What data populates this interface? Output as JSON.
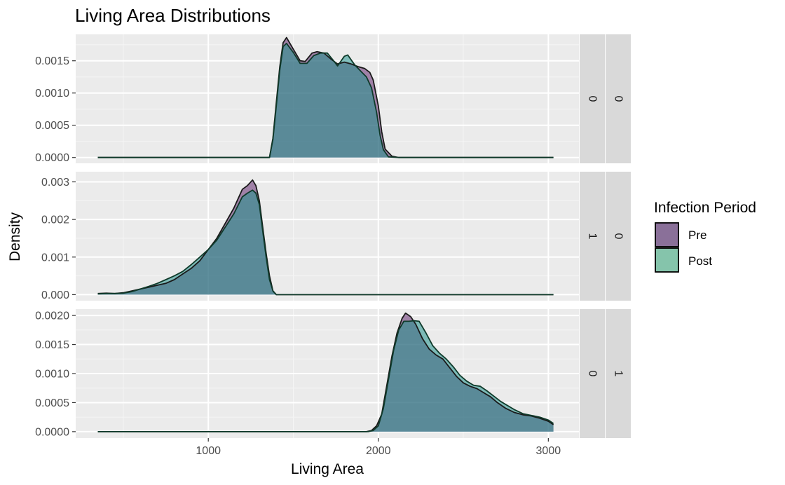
{
  "chart_data": {
    "type": "area",
    "title": "Living Area Distributions",
    "xlabel": "Living Area",
    "ylabel": "Density",
    "xlim": [
      220,
      3180
    ],
    "x_ticks": [
      1000,
      2000,
      3000
    ],
    "grid": true,
    "legend": {
      "title": "Infection Period",
      "placement": "right",
      "entries": [
        {
          "label": "Pre",
          "color": "#8a7099"
        },
        {
          "label": "Post",
          "color": "#85c4ab"
        }
      ]
    },
    "facets": [
      {
        "strip_labels": [
          "0",
          "0"
        ],
        "ylim": [
          -9e-05,
          0.00191
        ],
        "y_ticks": [
          0.0,
          0.0005,
          0.001,
          0.0015
        ],
        "y_tick_labels": [
          "0.0000",
          "0.0005",
          "0.0010",
          "0.0015"
        ],
        "series": [
          {
            "name": "Pre",
            "x": [
              350,
              1360,
              1380,
              1400,
              1420,
              1440,
              1460,
              1500,
              1540,
              1570,
              1610,
              1640,
              1680,
              1720,
              1760,
              1800,
              1840,
              1880,
              1920,
              1950,
              1970,
              2000,
              2020,
              2040,
              2080,
              2120,
              3030
            ],
            "y": [
              0,
              0,
              0.0003,
              0.00085,
              0.0014,
              0.00178,
              0.00186,
              0.00168,
              0.0015,
              0.00149,
              0.00162,
              0.00164,
              0.00162,
              0.00153,
              0.00145,
              0.00148,
              0.00145,
              0.00141,
              0.00138,
              0.00132,
              0.0012,
              0.0008,
              0.0004,
              0.00013,
              2e-05,
              0,
              0
            ]
          },
          {
            "name": "Post",
            "x": [
              350,
              1360,
              1380,
              1400,
              1420,
              1440,
              1460,
              1500,
              1540,
              1580,
              1620,
              1660,
              1700,
              1740,
              1760,
              1800,
              1820,
              1860,
              1900,
              1930,
              1960,
              1990,
              2010,
              2030,
              2060,
              2120,
              3030
            ],
            "y": [
              0,
              0,
              0.00028,
              0.0008,
              0.00135,
              0.00172,
              0.00177,
              0.00163,
              0.00146,
              0.00146,
              0.00158,
              0.00162,
              0.00162,
              0.00149,
              0.00142,
              0.00157,
              0.00159,
              0.00144,
              0.00133,
              0.00125,
              0.00108,
              0.0007,
              0.00035,
              0.00012,
              1e-05,
              0,
              0
            ]
          }
        ]
      },
      {
        "strip_labels": [
          "1",
          "0"
        ],
        "ylim": [
          -0.00016,
          0.00327
        ],
        "y_ticks": [
          0.0,
          0.001,
          0.002,
          0.003
        ],
        "y_tick_labels": [
          "0.000",
          "0.001",
          "0.002",
          "0.003"
        ],
        "series": [
          {
            "name": "Pre",
            "x": [
              350,
              400,
              450,
              500,
              550,
              600,
              650,
              700,
              750,
              800,
              850,
              900,
              950,
              1000,
              1050,
              1100,
              1150,
              1200,
              1230,
              1260,
              1280,
              1300,
              1320,
              1340,
              1360,
              1380,
              1400,
              3030
            ],
            "y": [
              3e-05,
              4e-05,
              3e-05,
              5e-05,
              0.0001,
              0.00015,
              0.0002,
              0.00025,
              0.0003,
              0.0004,
              0.00055,
              0.0007,
              0.0009,
              0.0012,
              0.0015,
              0.0019,
              0.0023,
              0.0028,
              0.0029,
              0.00305,
              0.0029,
              0.0025,
              0.0018,
              0.0011,
              0.0005,
              0.0001,
              0,
              0
            ]
          },
          {
            "name": "Post",
            "x": [
              350,
              400,
              450,
              500,
              550,
              600,
              650,
              700,
              750,
              800,
              850,
              900,
              950,
              1000,
              1050,
              1100,
              1150,
              1200,
              1230,
              1260,
              1280,
              1300,
              1320,
              1340,
              1360,
              1380,
              1400,
              3030
            ],
            "y": [
              2e-05,
              3e-05,
              3e-05,
              4e-05,
              8e-05,
              0.00015,
              0.00022,
              0.0003,
              0.0004,
              0.0005,
              0.00062,
              0.0008,
              0.001,
              0.0012,
              0.00145,
              0.0018,
              0.00215,
              0.0026,
              0.0027,
              0.00278,
              0.0027,
              0.0024,
              0.0017,
              0.001,
              0.0004,
              0.0001,
              0,
              0
            ]
          }
        ]
      },
      {
        "strip_labels": [
          "0",
          "1"
        ],
        "ylim": [
          -0.00011,
          0.00211
        ],
        "y_ticks": [
          0.0,
          0.0005,
          0.001,
          0.0015,
          0.002
        ],
        "y_tick_labels": [
          "0.0000",
          "0.0005",
          "0.0010",
          "0.0015",
          "0.0020"
        ],
        "series": [
          {
            "name": "Pre",
            "x": [
              350,
              1930,
              1960,
              1990,
              2020,
              2050,
              2080,
              2110,
              2140,
              2160,
              2190,
              2220,
              2260,
              2300,
              2340,
              2380,
              2420,
              2460,
              2500,
              2540,
              2580,
              2620,
              2660,
              2700,
              2750,
              2800,
              2850,
              2900,
              2950,
              3000,
              3030
            ],
            "y": [
              0,
              0,
              2e-05,
              0.0001,
              0.0003,
              0.0008,
              0.0013,
              0.0017,
              0.00195,
              0.00204,
              0.00198,
              0.00185,
              0.0016,
              0.00142,
              0.00132,
              0.00125,
              0.0011,
              0.00095,
              0.00084,
              0.00078,
              0.00074,
              0.00067,
              0.0006,
              0.0005,
              0.0004,
              0.00033,
              0.00029,
              0.00027,
              0.00023,
              0.00018,
              0.00012
            ]
          },
          {
            "name": "Post",
            "x": [
              350,
              1940,
              1970,
              2000,
              2030,
              2060,
              2090,
              2120,
              2150,
              2180,
              2210,
              2240,
              2280,
              2320,
              2360,
              2400,
              2440,
              2480,
              2520,
              2560,
              2600,
              2640,
              2680,
              2720,
              2760,
              2800,
              2850,
              2900,
              2950,
              3000,
              3030
            ],
            "y": [
              0,
              0,
              2e-05,
              0.0001,
              0.0004,
              0.0009,
              0.0014,
              0.00175,
              0.0019,
              0.0019,
              0.00191,
              0.0019,
              0.0017,
              0.00148,
              0.00135,
              0.00125,
              0.00112,
              0.00097,
              0.00087,
              0.0008,
              0.00078,
              0.0007,
              0.00061,
              0.00052,
              0.00045,
              0.00038,
              0.00031,
              0.00028,
              0.00025,
              0.0002,
              0.00014
            ]
          }
        ]
      }
    ]
  }
}
